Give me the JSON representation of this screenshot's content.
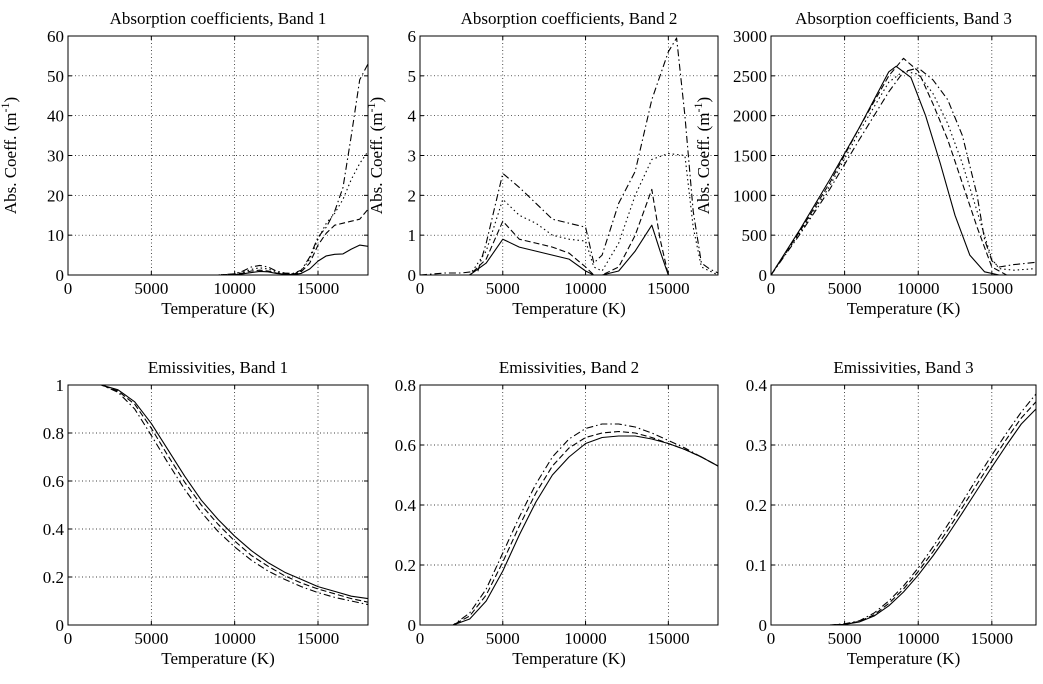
{
  "chart_data": [
    {
      "id": "abs1",
      "type": "line",
      "title": "Absorption coefficients, Band 1",
      "xlabel": "Temperature (K)",
      "ylabel": "Abs. Coeff. (m",
      "ylabel_sup": "-1",
      "ylabel_close": ")",
      "xlim": [
        0,
        18000
      ],
      "ylim": [
        0,
        60
      ],
      "xticks": [
        0,
        5000,
        10000,
        15000
      ],
      "yticks": [
        0,
        10,
        20,
        30,
        40,
        50,
        60
      ],
      "grid": true,
      "series": [
        {
          "style": "solid",
          "x": [
            0,
            9000,
            10000,
            10500,
            11000,
            11500,
            12000,
            12500,
            13000,
            13500,
            14000,
            14500,
            15000,
            15500,
            16000,
            16500,
            17000,
            17500,
            18000
          ],
          "y": [
            0,
            0,
            0.1,
            0.3,
            0.6,
            0.9,
            0.8,
            0.4,
            0.2,
            0.1,
            0.4,
            1.5,
            3.5,
            4.8,
            5.2,
            5.3,
            6.5,
            7.5,
            7.2
          ]
        },
        {
          "style": "dashed",
          "x": [
            0,
            9000,
            10000,
            10500,
            11000,
            11500,
            12000,
            12500,
            13000,
            13500,
            14000,
            14500,
            15000,
            15500,
            16000,
            16500,
            17000,
            17500,
            18000
          ],
          "y": [
            0,
            0,
            0.2,
            0.5,
            1.0,
            1.2,
            1.0,
            0.5,
            0.3,
            0.2,
            0.8,
            3.0,
            7.5,
            10.5,
            12.5,
            13.0,
            13.5,
            14.0,
            16.5
          ]
        },
        {
          "style": "dotted",
          "x": [
            0,
            9000,
            10000,
            10500,
            11000,
            11500,
            12000,
            12500,
            13000,
            13500,
            14000,
            14500,
            15000,
            15500,
            16000,
            16500,
            17000,
            17500,
            18000
          ],
          "y": [
            0,
            0,
            0.2,
            0.7,
            1.4,
            1.8,
            1.5,
            0.8,
            0.4,
            0.3,
            1.0,
            4.0,
            9.0,
            13.0,
            15.5,
            19.0,
            24.0,
            28.0,
            31.0
          ]
        },
        {
          "style": "dashdot",
          "x": [
            0,
            9000,
            10000,
            10500,
            11000,
            11500,
            12000,
            12500,
            13000,
            13500,
            14000,
            14500,
            15000,
            15500,
            16000,
            16500,
            17000,
            17500,
            18000
          ],
          "y": [
            0,
            0,
            0.3,
            1.0,
            2.0,
            2.4,
            2.0,
            1.0,
            0.5,
            0.4,
            1.2,
            4.5,
            9.5,
            12.0,
            16.0,
            22.0,
            35.0,
            49.0,
            53.0
          ]
        }
      ]
    },
    {
      "id": "abs2",
      "type": "line",
      "title": "Absorption coefficients, Band 2",
      "xlabel": "Temperature (K)",
      "ylabel": "Abs. Coeff. (m",
      "ylabel_sup": "-1",
      "ylabel_close": ")",
      "xlim": [
        0,
        18000
      ],
      "ylim": [
        0,
        6
      ],
      "xticks": [
        0,
        5000,
        10000,
        15000
      ],
      "yticks": [
        0,
        1,
        2,
        3,
        4,
        5,
        6
      ],
      "grid": true,
      "series": [
        {
          "style": "solid",
          "x": [
            0,
            3000,
            4000,
            5000,
            6000,
            7000,
            8000,
            9000,
            10000,
            10500,
            11000,
            12000,
            13000,
            14000,
            14500,
            15000,
            16000,
            17000,
            18000
          ],
          "y": [
            0,
            0,
            0.3,
            0.9,
            0.7,
            0.6,
            0.5,
            0.4,
            0.1,
            0,
            0,
            0.1,
            0.6,
            1.25,
            0.6,
            0,
            0,
            0,
            0
          ]
        },
        {
          "style": "dashed",
          "x": [
            0,
            3000,
            4000,
            5000,
            6000,
            7000,
            8000,
            9000,
            10000,
            10500,
            11000,
            12000,
            13000,
            14000,
            14500,
            15000,
            16000,
            17000,
            18000
          ],
          "y": [
            0,
            0,
            0.4,
            1.35,
            0.9,
            0.8,
            0.7,
            0.55,
            0.2,
            0,
            0,
            0.2,
            1.0,
            2.15,
            0.9,
            0,
            0,
            0,
            0
          ]
        },
        {
          "style": "dotted",
          "x": [
            0,
            2000,
            3000,
            4000,
            5000,
            6000,
            7000,
            8000,
            9000,
            10000,
            10500,
            11000,
            12000,
            13000,
            14000,
            15000,
            16000,
            16500,
            17000,
            17500,
            18000
          ],
          "y": [
            0,
            0,
            0,
            0.6,
            1.9,
            1.5,
            1.3,
            1.0,
            0.9,
            0.85,
            0.2,
            0.1,
            0.8,
            2.0,
            2.9,
            3.05,
            3.0,
            1.2,
            0.2,
            0.1,
            0
          ]
        },
        {
          "style": "dashdot",
          "x": [
            0,
            1500,
            2500,
            3500,
            4000,
            5000,
            6000,
            7000,
            8000,
            9000,
            10000,
            10500,
            11000,
            12000,
            13000,
            14000,
            15000,
            15500,
            16000,
            16500,
            17000,
            17500,
            18000
          ],
          "y": [
            0,
            0.05,
            0.05,
            0.1,
            0.8,
            2.55,
            2.2,
            1.8,
            1.4,
            1.3,
            1.2,
            0.3,
            0.5,
            1.8,
            2.6,
            4.4,
            5.6,
            5.95,
            4.0,
            1.6,
            0.3,
            0.15,
            0.05
          ]
        }
      ]
    },
    {
      "id": "abs3",
      "type": "line",
      "title": "Absorption coefficients, Band 3",
      "xlabel": "Temperature (K)",
      "ylabel": "Abs. Coeff. (m",
      "ylabel_sup": "-1",
      "ylabel_close": ")",
      "xlim": [
        0,
        18000
      ],
      "ylim": [
        0,
        3000
      ],
      "xticks": [
        0,
        5000,
        10000,
        15000
      ],
      "yticks": [
        0,
        500,
        1000,
        1500,
        2000,
        2500,
        3000
      ],
      "grid": true,
      "series": [
        {
          "style": "solid",
          "x": [
            0,
            2000,
            4000,
            6000,
            8000,
            8500,
            9500,
            10500,
            11500,
            12500,
            13500,
            14500,
            15500,
            16500,
            18000
          ],
          "y": [
            0,
            580,
            1200,
            1850,
            2550,
            2620,
            2480,
            2000,
            1400,
            750,
            250,
            40,
            0,
            0,
            0
          ]
        },
        {
          "style": "dashed",
          "x": [
            0,
            2000,
            4000,
            6000,
            8000,
            9000,
            10000,
            11000,
            12000,
            13000,
            14000,
            15000,
            16000,
            18000
          ],
          "y": [
            0,
            560,
            1160,
            1850,
            2500,
            2720,
            2560,
            2150,
            1700,
            1150,
            600,
            100,
            0,
            0
          ]
        },
        {
          "style": "dotted",
          "x": [
            0,
            2000,
            4000,
            6000,
            8000,
            9000,
            10000,
            11000,
            12000,
            13000,
            14000,
            15000,
            15500,
            16500,
            18000
          ],
          "y": [
            0,
            540,
            1120,
            1800,
            2420,
            2560,
            2520,
            2280,
            1900,
            1400,
            800,
            200,
            80,
            60,
            80
          ]
        },
        {
          "style": "dashdot",
          "x": [
            0,
            2000,
            4000,
            6000,
            8000,
            9000,
            10000,
            11000,
            12000,
            13000,
            14000,
            14500,
            15000,
            15500,
            16500,
            17500,
            18000
          ],
          "y": [
            0,
            520,
            1080,
            1700,
            2300,
            2550,
            2600,
            2450,
            2200,
            1750,
            1000,
            450,
            180,
            100,
            130,
            150,
            160
          ]
        }
      ]
    },
    {
      "id": "emi1",
      "type": "line",
      "title": "Emissivities, Band 1",
      "xlabel": "Temperature (K)",
      "ylabel": "",
      "ylabel_sup": "",
      "ylabel_close": "",
      "xlim": [
        0,
        18000
      ],
      "ylim": [
        0,
        1
      ],
      "xticks": [
        0,
        5000,
        10000,
        15000
      ],
      "yticks": [
        0,
        0.2,
        0.4,
        0.6,
        0.8,
        1
      ],
      "grid": true,
      "series": [
        {
          "style": "solid",
          "x": [
            0,
            2000,
            3000,
            4000,
            5000,
            6000,
            7000,
            8000,
            9000,
            10000,
            11000,
            12000,
            13000,
            14000,
            15000,
            16000,
            17000,
            18000
          ],
          "y": [
            1,
            1,
            0.98,
            0.93,
            0.84,
            0.73,
            0.62,
            0.52,
            0.44,
            0.37,
            0.31,
            0.26,
            0.22,
            0.19,
            0.16,
            0.14,
            0.12,
            0.11
          ]
        },
        {
          "style": "dashed",
          "x": [
            0,
            2000,
            3000,
            4000,
            5000,
            6000,
            7000,
            8000,
            9000,
            10000,
            11000,
            12000,
            13000,
            14000,
            15000,
            16000,
            17000,
            18000
          ],
          "y": [
            1,
            1,
            0.975,
            0.92,
            0.82,
            0.705,
            0.595,
            0.5,
            0.42,
            0.35,
            0.29,
            0.245,
            0.205,
            0.175,
            0.15,
            0.13,
            0.11,
            0.095
          ]
        },
        {
          "style": "dashdot",
          "x": [
            0,
            2000,
            3000,
            4000,
            5000,
            6000,
            7000,
            8000,
            9000,
            10000,
            11000,
            12000,
            13000,
            14000,
            15000,
            16000,
            17000,
            18000
          ],
          "y": [
            1,
            1,
            0.97,
            0.9,
            0.79,
            0.675,
            0.565,
            0.47,
            0.39,
            0.325,
            0.27,
            0.225,
            0.19,
            0.16,
            0.135,
            0.115,
            0.1,
            0.085
          ]
        }
      ]
    },
    {
      "id": "emi2",
      "type": "line",
      "title": "Emissivities, Band 2",
      "xlabel": "Temperature (K)",
      "ylabel": "",
      "ylabel_sup": "",
      "ylabel_close": "",
      "xlim": [
        0,
        18000
      ],
      "ylim": [
        0,
        0.8
      ],
      "xticks": [
        0,
        5000,
        10000,
        15000
      ],
      "yticks": [
        0,
        0.2,
        0.4,
        0.6,
        0.8
      ],
      "grid": true,
      "series": [
        {
          "style": "solid",
          "x": [
            0,
            2000,
            3000,
            4000,
            5000,
            6000,
            7000,
            8000,
            9000,
            10000,
            11000,
            12000,
            13000,
            14000,
            15000,
            16000,
            17000,
            18000
          ],
          "y": [
            0,
            0,
            0.02,
            0.08,
            0.18,
            0.3,
            0.41,
            0.5,
            0.56,
            0.605,
            0.625,
            0.63,
            0.63,
            0.62,
            0.605,
            0.585,
            0.56,
            0.53
          ]
        },
        {
          "style": "dashed",
          "x": [
            0,
            2000,
            3000,
            4000,
            5000,
            6000,
            7000,
            8000,
            9000,
            10000,
            11000,
            12000,
            13000,
            14000,
            15000,
            16000,
            17000,
            18000
          ],
          "y": [
            0,
            0,
            0.03,
            0.1,
            0.21,
            0.33,
            0.44,
            0.53,
            0.59,
            0.625,
            0.64,
            0.645,
            0.64,
            0.625,
            0.605,
            0.585,
            0.56,
            0.53
          ]
        },
        {
          "style": "dashdot",
          "x": [
            0,
            2000,
            3000,
            4000,
            5000,
            6000,
            7000,
            8000,
            9000,
            10000,
            11000,
            12000,
            13000,
            14000,
            15000,
            16000,
            17000,
            18000
          ],
          "y": [
            0,
            0,
            0.04,
            0.12,
            0.24,
            0.36,
            0.47,
            0.56,
            0.62,
            0.655,
            0.67,
            0.67,
            0.66,
            0.64,
            0.615,
            0.59,
            0.56,
            0.53
          ]
        }
      ]
    },
    {
      "id": "emi3",
      "type": "line",
      "title": "Emissivities, Band 3",
      "xlabel": "Temperature (K)",
      "ylabel": "",
      "ylabel_sup": "",
      "ylabel_close": "",
      "xlim": [
        0,
        18000
      ],
      "ylim": [
        0,
        0.4
      ],
      "xticks": [
        0,
        5000,
        10000,
        15000
      ],
      "yticks": [
        0,
        0.1,
        0.2,
        0.3,
        0.4
      ],
      "grid": true,
      "series": [
        {
          "style": "solid",
          "x": [
            0,
            4000,
            5000,
            6000,
            7000,
            8000,
            9000,
            10000,
            11000,
            12000,
            13000,
            14000,
            15000,
            16000,
            17000,
            18000
          ],
          "y": [
            0,
            0,
            0.001,
            0.005,
            0.015,
            0.032,
            0.055,
            0.083,
            0.115,
            0.15,
            0.187,
            0.225,
            0.263,
            0.3,
            0.335,
            0.36
          ]
        },
        {
          "style": "dashed",
          "x": [
            0,
            4000,
            5000,
            6000,
            7000,
            8000,
            9000,
            10000,
            11000,
            12000,
            13000,
            14000,
            15000,
            16000,
            17000,
            18000
          ],
          "y": [
            0,
            0,
            0.0015,
            0.006,
            0.017,
            0.036,
            0.06,
            0.089,
            0.122,
            0.158,
            0.196,
            0.235,
            0.273,
            0.31,
            0.345,
            0.372
          ]
        },
        {
          "style": "dashdot",
          "x": [
            0,
            4000,
            5000,
            6000,
            7000,
            8000,
            9000,
            10000,
            11000,
            12000,
            13000,
            14000,
            15000,
            16000,
            17000,
            18000
          ],
          "y": [
            0,
            0,
            0.002,
            0.007,
            0.02,
            0.04,
            0.065,
            0.095,
            0.13,
            0.167,
            0.205,
            0.245,
            0.283,
            0.32,
            0.355,
            0.385
          ]
        }
      ]
    }
  ]
}
